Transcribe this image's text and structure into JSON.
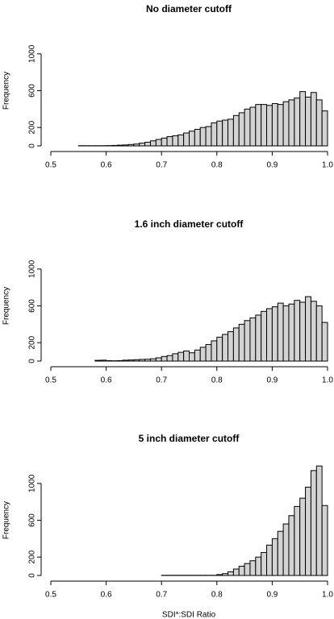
{
  "chart_data": [
    {
      "type": "histogram",
      "title": "No diameter cutoff",
      "ylabel": "Frequency",
      "color": "#d3d3d3",
      "bins": [
        0.55,
        0.56,
        0.57,
        0.58,
        0.59,
        0.6,
        0.61,
        0.62,
        0.63,
        0.64,
        0.65,
        0.66,
        0.67,
        0.68,
        0.69,
        0.7,
        0.71,
        0.72,
        0.73,
        0.74,
        0.75,
        0.76,
        0.77,
        0.78,
        0.79,
        0.8,
        0.81,
        0.82,
        0.83,
        0.84,
        0.85,
        0.86,
        0.87,
        0.88,
        0.89,
        0.9,
        0.91,
        0.92,
        0.93,
        0.94,
        0.95,
        0.96,
        0.97,
        0.98,
        0.99,
        1.0
      ],
      "values": [
        2,
        2,
        2,
        2,
        2,
        3,
        5,
        8,
        10,
        15,
        20,
        30,
        40,
        55,
        70,
        85,
        100,
        110,
        120,
        140,
        160,
        180,
        200,
        210,
        250,
        270,
        280,
        290,
        330,
        360,
        400,
        420,
        450,
        450,
        440,
        460,
        450,
        480,
        500,
        520,
        590,
        530,
        580,
        500,
        380
      ],
      "xlim": [
        0.5,
        1.0
      ],
      "xticks": [
        0.5,
        0.6,
        0.7,
        0.8,
        0.9,
        {
          "value": 1,
          "label": "1.0"
        }
      ],
      "ylim": [
        0,
        1200
      ],
      "yticks": [
        0,
        200,
        600,
        1000
      ]
    },
    {
      "type": "histogram",
      "title": "1.6 inch diameter cutoff",
      "ylabel": "Frequency",
      "color": "#d3d3d3",
      "bins": [
        0.58,
        0.59,
        0.6,
        0.61,
        0.62,
        0.63,
        0.64,
        0.65,
        0.66,
        0.67,
        0.68,
        0.69,
        0.7,
        0.71,
        0.72,
        0.73,
        0.74,
        0.75,
        0.76,
        0.77,
        0.78,
        0.79,
        0.8,
        0.81,
        0.82,
        0.83,
        0.84,
        0.85,
        0.86,
        0.87,
        0.88,
        0.89,
        0.9,
        0.91,
        0.92,
        0.93,
        0.94,
        0.95,
        0.96,
        0.97,
        0.98,
        0.99,
        1.0
      ],
      "values": [
        8,
        10,
        5,
        3,
        5,
        10,
        12,
        15,
        18,
        20,
        25,
        35,
        50,
        60,
        80,
        95,
        110,
        90,
        120,
        150,
        180,
        220,
        260,
        290,
        320,
        360,
        400,
        440,
        470,
        500,
        540,
        570,
        590,
        630,
        600,
        620,
        660,
        640,
        700,
        650,
        600,
        420
      ],
      "xlim": [
        0.5,
        1.0
      ],
      "xticks": [
        0.5,
        0.6,
        0.7,
        0.8,
        0.9,
        {
          "value": 1,
          "label": "1.0"
        }
      ],
      "ylim": [
        0,
        1200
      ],
      "yticks": [
        0,
        200,
        600,
        1000
      ]
    },
    {
      "type": "histogram",
      "title": "5 inch diameter cutoff",
      "ylabel": "Frequency",
      "xlabel": "SDI*:SDI Ratio",
      "color": "#d3d3d3",
      "bins": [
        0.7,
        0.71,
        0.72,
        0.73,
        0.74,
        0.75,
        0.76,
        0.77,
        0.78,
        0.79,
        0.8,
        0.81,
        0.82,
        0.83,
        0.84,
        0.85,
        0.86,
        0.87,
        0.88,
        0.89,
        0.9,
        0.91,
        0.92,
        0.93,
        0.94,
        0.95,
        0.96,
        0.97,
        0.98,
        0.99,
        1.0
      ],
      "values": [
        2,
        2,
        2,
        2,
        2,
        2,
        2,
        2,
        2,
        2,
        10,
        20,
        40,
        70,
        100,
        130,
        160,
        200,
        250,
        330,
        400,
        480,
        560,
        650,
        750,
        840,
        960,
        1140,
        1190,
        760
      ],
      "xlim": [
        0.5,
        1.0
      ],
      "xticks": [
        0.5,
        0.6,
        0.7,
        0.8,
        0.9,
        {
          "value": 1,
          "label": "1.0"
        }
      ],
      "ylim": [
        0,
        1200
      ],
      "yticks": [
        0,
        200,
        600,
        1000
      ]
    }
  ]
}
